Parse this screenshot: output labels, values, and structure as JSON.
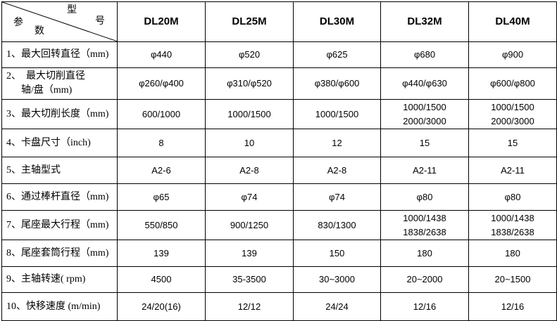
{
  "header": {
    "corner": {
      "top": "型",
      "right": "号",
      "left": "参",
      "bottom": "数"
    },
    "models": [
      "DL20M",
      "DL25M",
      "DL30M",
      "DL32M",
      "DL40M"
    ]
  },
  "rows": [
    {
      "param": [
        "1、最大回转直径（mm)"
      ],
      "values": [
        [
          "φ440"
        ],
        [
          "φ520"
        ],
        [
          "φ625"
        ],
        [
          "φ680"
        ],
        [
          "φ900"
        ]
      ]
    },
    {
      "param": [
        "2、  最大切削直径",
        "      轴/盘（mm)"
      ],
      "values": [
        [
          "φ260/φ400"
        ],
        [
          "φ310/φ520"
        ],
        [
          "φ380/φ600"
        ],
        [
          "φ440/φ630"
        ],
        [
          "φ600/φ800"
        ]
      ]
    },
    {
      "param": [
        "3、最大切削长度（mm)"
      ],
      "values": [
        [
          "600/1000"
        ],
        [
          "1000/1500"
        ],
        [
          "1000/1500"
        ],
        [
          "1000/1500",
          "2000/3000"
        ],
        [
          "1000/1500",
          "2000/3000"
        ]
      ]
    },
    {
      "param": [
        "4、卡盘尺寸（inch)"
      ],
      "values": [
        [
          "8"
        ],
        [
          "10"
        ],
        [
          "12"
        ],
        [
          "15"
        ],
        [
          "15"
        ]
      ]
    },
    {
      "param": [
        "5、主轴型式"
      ],
      "values": [
        [
          "A2-6"
        ],
        [
          "A2-8"
        ],
        [
          "A2-8"
        ],
        [
          "A2-11"
        ],
        [
          "A2-11"
        ]
      ]
    },
    {
      "param": [
        "6、通过棒杆直径（mm)"
      ],
      "values": [
        [
          "φ65"
        ],
        [
          "φ74"
        ],
        [
          "φ74"
        ],
        [
          "φ80"
        ],
        [
          "φ80"
        ]
      ]
    },
    {
      "param": [
        "7、尾座最大行程（mm)"
      ],
      "values": [
        [
          "550/850"
        ],
        [
          "900/1250"
        ],
        [
          "830/1300"
        ],
        [
          "1000/1438",
          "1838/2638"
        ],
        [
          "1000/1438",
          "1838/2638"
        ]
      ]
    },
    {
      "param": [
        "8、尾座套筒行程（mm)"
      ],
      "values": [
        [
          "139"
        ],
        [
          "139"
        ],
        [
          "150"
        ],
        [
          "180"
        ],
        [
          "180"
        ]
      ]
    },
    {
      "param": [
        "9、主轴转速( rpm)"
      ],
      "values": [
        [
          "4500"
        ],
        [
          "35-3500"
        ],
        [
          "30~3000"
        ],
        [
          "20~2000"
        ],
        [
          "20~1500"
        ]
      ]
    },
    {
      "param": [
        "10、快移速度 (m/min)"
      ],
      "values": [
        [
          "24/20(16)"
        ],
        [
          "12/12"
        ],
        [
          "24/24"
        ],
        [
          "12/16"
        ],
        [
          "12/16"
        ]
      ]
    }
  ]
}
